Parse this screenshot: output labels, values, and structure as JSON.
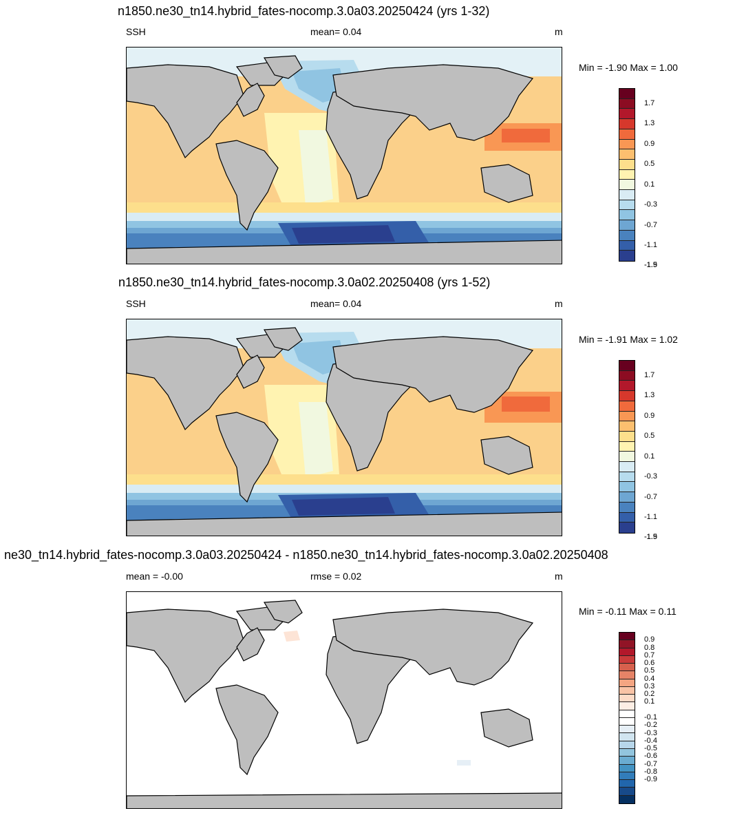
{
  "panels": [
    {
      "title": "n1850.ne30_tn14.hybrid_fates-nocomp.3.0a03.20250424 (yrs 1-32)",
      "left_label": "SSH",
      "center_label": "mean=   0.04",
      "units": "m",
      "minmax": "Min =  -1.90 Max =   1.00",
      "colorbar": {
        "colors": [
          "#67001f",
          "#8c0c22",
          "#b2182b",
          "#d6382c",
          "#f06a3c",
          "#f99754",
          "#fcbf6f",
          "#fddf8c",
          "#fff3b1",
          "#f1f8e0",
          "#d9ecf4",
          "#b7dcee",
          "#90c4e2",
          "#6ea6d2",
          "#4a82be",
          "#345fa9",
          "#2a3f8e"
        ],
        "labels": [
          "1.7",
          "1.3",
          "0.9",
          "0.5",
          "0.1",
          "-0.3",
          "-0.7",
          "-1.1",
          "-1.5",
          "-1.9"
        ]
      }
    },
    {
      "title": "n1850.ne30_tn14.hybrid_fates-nocomp.3.0a02.20250408 (yrs 1-52)",
      "left_label": "SSH",
      "center_label": "mean=   0.04",
      "units": "m",
      "minmax": "Min =  -1.91 Max =   1.02",
      "colorbar": {
        "colors": [
          "#67001f",
          "#8c0c22",
          "#b2182b",
          "#d6382c",
          "#f06a3c",
          "#f99754",
          "#fcbf6f",
          "#fddf8c",
          "#fff3b1",
          "#f1f8e0",
          "#d9ecf4",
          "#b7dcee",
          "#90c4e2",
          "#6ea6d2",
          "#4a82be",
          "#345fa9",
          "#2a3f8e"
        ],
        "labels": [
          "1.7",
          "1.3",
          "0.9",
          "0.5",
          "0.1",
          "-0.3",
          "-0.7",
          "-1.1",
          "-1.5",
          "-1.9"
        ]
      }
    },
    {
      "title": "ne30_tn14.hybrid_fates-nocomp.3.0a03.20250424 - n1850.ne30_tn14.hybrid_fates-nocomp.3.0a02.20250408",
      "left_label": "mean =  -0.00",
      "center_label": "rmse =   0.02",
      "units": "m",
      "minmax": "Min =  -0.11 Max =   0.11",
      "colorbar": {
        "colors": [
          "#67001f",
          "#911426",
          "#b2182b",
          "#c93a3a",
          "#d6604d",
          "#e58367",
          "#f4a582",
          "#f9c3a6",
          "#fddbc7",
          "#fdeee4",
          "#ffffff",
          "#ffffff",
          "#e6eff6",
          "#d1e5f0",
          "#b7d6ea",
          "#92c5de",
          "#6aacd1",
          "#4393c3",
          "#327dba",
          "#2166ac",
          "#174a8a",
          "#053061"
        ],
        "labels": [
          "0.9",
          "0.8",
          "0.7",
          "0.6",
          "0.5",
          "0.4",
          "0.3",
          "0.2",
          "0.1",
          "-0.1",
          "-0.2",
          "-0.3",
          "-0.4",
          "-0.5",
          "-0.6",
          "-0.7",
          "-0.8",
          "-0.9"
        ]
      }
    }
  ]
}
